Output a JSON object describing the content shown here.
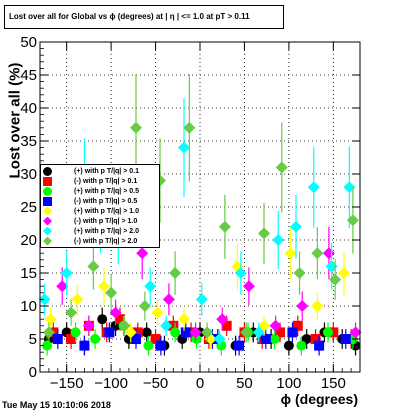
{
  "chart_data": {
    "type": "scatter",
    "title": "Lost over all for Global vs ϕ (degrees) at | η | <= 1.0 at pT > 0.11",
    "xlabel": "ϕ (degrees)",
    "ylabel": "Lost over all (%)",
    "xlim": [
      -180,
      180
    ],
    "ylim": [
      0,
      50
    ],
    "grid": true,
    "legend_position": "center-left",
    "x_ticks": [
      -150,
      -100,
      -50,
      0,
      50,
      100,
      150
    ],
    "x_tick_labels": [
      "−150",
      "−100",
      "−50",
      "0",
      "50",
      "100",
      "150"
    ],
    "y_ticks": [
      0,
      5,
      10,
      15,
      20,
      25,
      30,
      35,
      40,
      45,
      50
    ],
    "y_tick_labels": [
      "0",
      "5",
      "10",
      "15",
      "20",
      "25",
      "30",
      "35",
      "40",
      "45",
      "50"
    ],
    "series": [
      {
        "name": "(+) with p T/|q| > 0.1",
        "color": "#000000",
        "marker": "circle",
        "x": [
          -170,
          -150,
          -130,
          -110,
          -95,
          -80,
          -60,
          -40,
          -20,
          0,
          20,
          40,
          60,
          80,
          100,
          120,
          140,
          160,
          175
        ],
        "y": [
          5,
          6,
          4,
          8,
          7,
          5,
          6,
          4,
          5,
          6,
          5,
          4,
          6,
          5,
          4,
          5,
          6,
          5,
          4
        ]
      },
      {
        "name": "(-) with p T/|q| > 0.1",
        "color": "#ff0000",
        "marker": "square",
        "x": [
          -165,
          -145,
          -125,
          -105,
          -90,
          -70,
          -50,
          -30,
          -10,
          10,
          30,
          50,
          70,
          90,
          110,
          130,
          150,
          170
        ],
        "y": [
          6,
          5,
          7,
          6,
          8,
          6,
          5,
          7,
          6,
          5,
          7,
          6,
          5,
          6,
          7,
          5,
          6,
          5
        ]
      },
      {
        "name": "(+) with p T/|q| > 0.5",
        "color": "#00ff00",
        "marker": "circle",
        "x": [
          -172,
          -140,
          -118,
          -86,
          -58,
          -28,
          -4,
          24,
          54,
          84,
          114,
          144,
          172
        ],
        "y": [
          4,
          6,
          5,
          7,
          4,
          6,
          5,
          4,
          6,
          5,
          4,
          6,
          5
        ]
      },
      {
        "name": "(-) with p T/|q| > 0.5",
        "color": "#0000ff",
        "marker": "square",
        "x": [
          -160,
          -130,
          -102,
          -72,
          -44,
          -16,
          14,
          44,
          74,
          104,
          134,
          164
        ],
        "y": [
          5,
          4,
          6,
          5,
          4,
          6,
          5,
          4,
          5,
          6,
          4,
          5
        ]
      },
      {
        "name": "(+) with p T/|q| > 1.0",
        "color": "#ffff00",
        "marker": "diamond",
        "x": [
          -168,
          -138,
          -108,
          -78,
          -48,
          -18,
          12,
          42,
          72,
          102,
          132,
          162
        ],
        "y": [
          8,
          11,
          13,
          6,
          9,
          8,
          5,
          16,
          7,
          18,
          10,
          15
        ]
      },
      {
        "name": "(-) with p T/|q| > 1.0",
        "color": "#ff00ff",
        "marker": "diamond",
        "x": [
          -155,
          -125,
          -95,
          -65,
          -35,
          -5,
          25,
          55,
          85,
          115,
          145,
          175
        ],
        "y": [
          13,
          7,
          9,
          18,
          11,
          6,
          8,
          13,
          7,
          10,
          18,
          6
        ]
      },
      {
        "name": "(+) with p T/|q| > 2.0",
        "color": "#00ffff",
        "marker": "diamond",
        "x": [
          -175,
          -150,
          -130,
          -112,
          -92,
          -76,
          -56,
          -38,
          -18,
          2,
          22,
          46,
          66,
          88,
          108,
          128,
          148,
          168
        ],
        "y": [
          11,
          15,
          29,
          23,
          21,
          24,
          13,
          7,
          34,
          11,
          5,
          15,
          6,
          20,
          22,
          28,
          16,
          28
        ]
      },
      {
        "name": "(-) with p T/|q| > 2.0",
        "color": "#66cc44",
        "marker": "diamond",
        "x": [
          -170,
          -145,
          -120,
          -100,
          -85,
          -72,
          -62,
          -45,
          -28,
          -12,
          8,
          28,
          52,
          72,
          92,
          112,
          132,
          152,
          172
        ],
        "y": [
          6,
          9,
          16,
          12,
          7,
          37,
          10,
          29,
          15,
          37,
          6,
          22,
          6,
          21,
          31,
          15,
          18,
          14,
          23
        ]
      }
    ]
  },
  "page": {
    "legend_entries": [
      {
        "label": "(+) with p T/|q| > 0.1",
        "color": "#000000",
        "marker": "circle"
      },
      {
        "label": "(-) with p T/|q| > 0.1",
        "color": "#ff0000",
        "marker": "square"
      },
      {
        "label": "(+) with p T/|q| > 0.5",
        "color": "#00ff00",
        "marker": "circle"
      },
      {
        "label": "(-) with p T/|q| > 0.5",
        "color": "#0000ff",
        "marker": "square"
      },
      {
        "label": "(+) with p T/|q| > 1.0",
        "color": "#ffff00",
        "marker": "diamond"
      },
      {
        "label": "(-) with p T/|q| > 1.0",
        "color": "#ff00ff",
        "marker": "diamond"
      },
      {
        "label": "(+) with p T/|q| > 2.0",
        "color": "#00ffff",
        "marker": "diamond"
      },
      {
        "label": "(-) with p T/|q| > 2.0",
        "color": "#66cc44",
        "marker": "diamond"
      }
    ],
    "footer": "Tue May 15 10:10:06 2018"
  }
}
